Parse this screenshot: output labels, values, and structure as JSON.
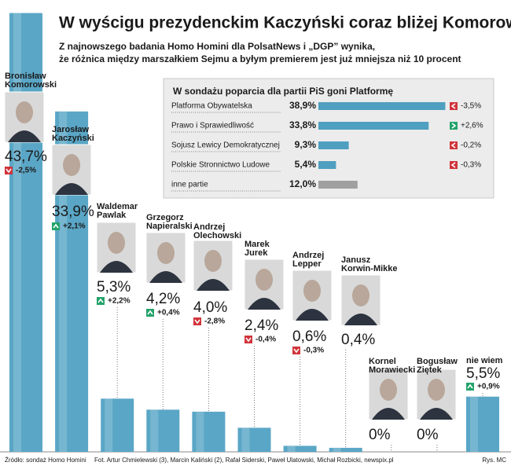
{
  "chart_data": [
    {
      "type": "bar",
      "title": "W wyścigu prezydenckim Kaczyński coraz bliżej Komorowskiego",
      "subtitle": [
        "Z najnowszego badania Homo Homini dla PolsatNews i „DGP” wynika,",
        "że różnica między marszałkiem Sejmu a byłym premierem jest już mniejsza niż 10 procent"
      ],
      "categories": [
        "Bronisław Komorowski",
        "Jarosław Kaczyński",
        "Waldemar Pawlak",
        "Grzegorz Napieralski",
        "Andrzej Olechowski",
        "Marek Jurek",
        "Andrzej Lepper",
        "Janusz Korwin-Mikke",
        "Kornel Morawiecki",
        "Bogusław Ziętek",
        "nie wiem"
      ],
      "values": [
        43.7,
        33.9,
        5.3,
        4.2,
        4.0,
        2.4,
        0.6,
        0.4,
        0,
        0,
        5.5
      ],
      "value_labels": [
        "43,7%",
        "33,9%",
        "5,3%",
        "4,2%",
        "4,0%",
        "2,4%",
        "0,6%",
        "0,4%",
        "0%",
        "0%",
        "5,5%"
      ],
      "changes": [
        -2.5,
        2.1,
        2.2,
        0.4,
        -2.8,
        -0.4,
        -0.3,
        null,
        null,
        null,
        0.9
      ],
      "change_labels": [
        "-2,5%",
        "+2,1%",
        "+2,2%",
        "+0,4%",
        "-2,8%",
        "-0,4%",
        "-0,3%",
        null,
        null,
        null,
        "+0,9%"
      ],
      "color": "#5aa6c6",
      "ylim": [
        0,
        45
      ]
    },
    {
      "type": "hbar",
      "title": "W sondażu poparcia dla partii PiS goni Platformę",
      "categories": [
        "Platforma Obywatelska",
        "Prawo i Sprawiedliwość",
        "Sojusz Lewicy Demokratycznej",
        "Polskie Stronnictwo Ludowe",
        "inne partie"
      ],
      "values": [
        38.9,
        33.8,
        9.3,
        5.4,
        12.0
      ],
      "value_labels": [
        "38,9%",
        "33,8%",
        "9,3%",
        "5,4%",
        "12,0%"
      ],
      "changes": [
        -3.5,
        2.6,
        -0.2,
        -0.3,
        null
      ],
      "change_labels": [
        "-3,5%",
        "+2,6%",
        "-0,2%",
        "-0,3%",
        null
      ],
      "colors": [
        "#4f9fc0",
        "#4f9fc0",
        "#4f9fc0",
        "#4f9fc0",
        "#a0a0a0"
      ],
      "xlim": [
        0,
        40
      ]
    }
  ],
  "footer": {
    "source": "Źródło: sondaż Homo Homini",
    "photos": "Fot. Artur Chmielewski (3), Marcin Kaliński (2), Rafał Siderski, Paweł Ulatowski, Michał Rozbicki, newspix.pl",
    "credit": "Rys. MC"
  }
}
